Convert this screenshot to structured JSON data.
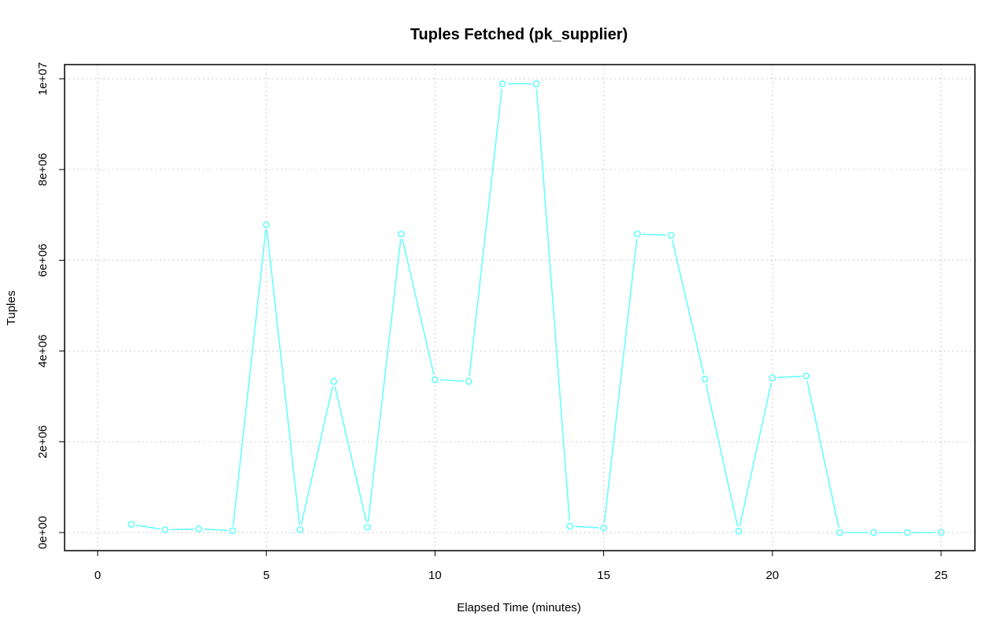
{
  "chart_data": {
    "type": "line",
    "title": "Tuples Fetched (pk_supplier)",
    "xlabel": "Elapsed Time (minutes)",
    "ylabel": "Tuples",
    "xlim": [
      0,
      25
    ],
    "ylim": [
      0,
      10000000
    ],
    "x_ticks": [
      0,
      5,
      10,
      15,
      20,
      25
    ],
    "x_tick_labels": [
      "0",
      "5",
      "10",
      "15",
      "20",
      "25"
    ],
    "y_ticks": [
      0,
      2000000,
      4000000,
      6000000,
      8000000,
      10000000
    ],
    "y_tick_labels": [
      "0e+00",
      "2e+06",
      "4e+06",
      "6e+06",
      "8e+06",
      "1e+07"
    ],
    "grid": true,
    "series": [
      {
        "color": "#66ffff",
        "marker": "circle",
        "x": [
          1,
          2,
          3,
          4,
          5,
          6,
          7,
          8,
          9,
          10,
          11,
          12,
          13,
          14,
          15,
          16,
          17,
          18,
          19,
          20,
          21,
          22,
          23,
          24,
          25
        ],
        "values": [
          180000,
          60000,
          80000,
          40000,
          6780000,
          60000,
          3330000,
          120000,
          6580000,
          3370000,
          3330000,
          9890000,
          9890000,
          140000,
          100000,
          6580000,
          6550000,
          3380000,
          30000,
          3410000,
          3450000,
          0,
          0,
          0,
          0
        ]
      }
    ]
  }
}
